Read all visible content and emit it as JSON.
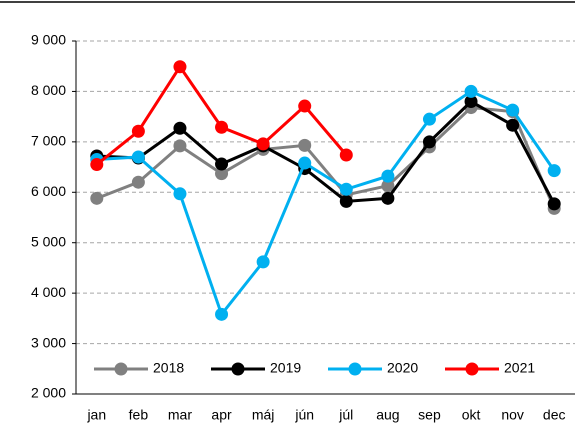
{
  "chart_data": {
    "type": "line",
    "categories": [
      "jan",
      "feb",
      "mar",
      "apr",
      "máj",
      "jún",
      "júl",
      "aug",
      "sep",
      "okt",
      "nov",
      "dec"
    ],
    "series": [
      {
        "name": "2018",
        "color": "#808080",
        "values": [
          5880,
          6200,
          6920,
          6370,
          6850,
          6930,
          5950,
          6130,
          6900,
          7680,
          7600,
          5680
        ]
      },
      {
        "name": "2019",
        "color": "#000000",
        "values": [
          6720,
          6680,
          7270,
          6560,
          6920,
          6470,
          5820,
          5880,
          7000,
          7800,
          7330,
          5770
        ]
      },
      {
        "name": "2020",
        "color": "#00b0f0",
        "values": [
          6650,
          6700,
          5970,
          3580,
          4620,
          6580,
          6060,
          6320,
          7450,
          8000,
          7630,
          6430
        ]
      },
      {
        "name": "2021",
        "color": "#ff0000",
        "values": [
          6550,
          7210,
          8490,
          7290,
          6960,
          7710,
          6740,
          null,
          null,
          null,
          null,
          null
        ]
      }
    ],
    "ylim": [
      2000,
      9000
    ],
    "yticks": [
      {
        "value": 2000,
        "label": "2 000"
      },
      {
        "value": 3000,
        "label": "3 000"
      },
      {
        "value": 4000,
        "label": "4 000"
      },
      {
        "value": 5000,
        "label": "5 000"
      },
      {
        "value": 6000,
        "label": "6 000"
      },
      {
        "value": 7000,
        "label": "7 000"
      },
      {
        "value": 8000,
        "label": "8 000"
      },
      {
        "value": 9000,
        "label": "9 000"
      }
    ],
    "grid": true,
    "legend": "bottom"
  }
}
